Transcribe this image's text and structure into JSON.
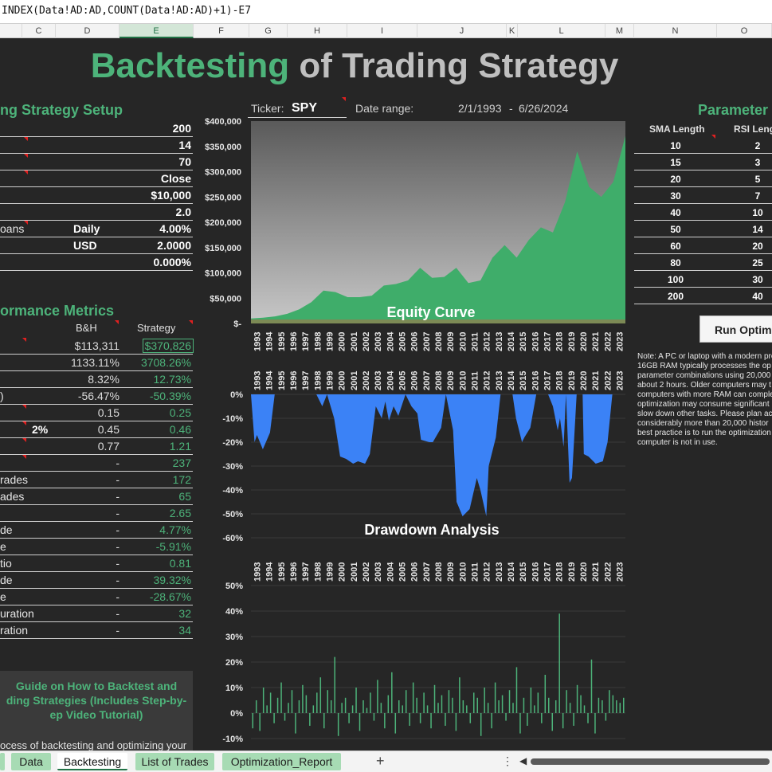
{
  "formula_bar": {
    "text": "INDEX(Data!AD:AD,COUNT(Data!AD:AD)+1)-E7"
  },
  "columns": [
    "C",
    "D",
    "E",
    "F",
    "G",
    "H",
    "I",
    "J",
    "K",
    "L",
    "M",
    "N",
    "O"
  ],
  "title": {
    "part1": "Backtesting",
    "part2": " of Trading Strategy"
  },
  "setup": {
    "heading": "ng Strategy Setup",
    "rows": [
      {
        "label": "",
        "mid": "",
        "value": "200"
      },
      {
        "label": "",
        "mid": "",
        "value": "14"
      },
      {
        "label": "",
        "mid": "",
        "value": "70"
      },
      {
        "label": "",
        "mid": "",
        "value": "Close"
      },
      {
        "label": "",
        "mid": "",
        "value": "$10,000"
      },
      {
        "label": "",
        "mid": "",
        "value": "2.0"
      },
      {
        "label": "oans",
        "mid": "Daily",
        "value": "4.00%"
      },
      {
        "label": "",
        "mid": "USD",
        "value": "2.0000"
      },
      {
        "label": "",
        "mid": "",
        "value": "0.000%"
      }
    ]
  },
  "metrics": {
    "heading": "ormance Metrics",
    "col_bh": "B&H",
    "col_strategy": "Strategy",
    "rows": [
      {
        "label": "",
        "mid": "",
        "bh": "$113,311",
        "strategy": "$370,826"
      },
      {
        "label": "",
        "mid": "",
        "bh": "1133.11%",
        "strategy": "3708.26%"
      },
      {
        "label": "",
        "mid": "",
        "bh": "8.32%",
        "strategy": "12.73%"
      },
      {
        "label": ")",
        "mid": "",
        "bh": "-56.47%",
        "strategy": "-50.39%"
      },
      {
        "label": "",
        "mid": "",
        "bh": "0.15",
        "strategy": "0.25"
      },
      {
        "label": "",
        "mid": "2%",
        "bh": "0.45",
        "strategy": "0.46"
      },
      {
        "label": "",
        "mid": "",
        "bh": "0.77",
        "strategy": "1.21"
      },
      {
        "label": "",
        "mid": "",
        "bh": "-",
        "strategy": "237"
      },
      {
        "label": "rades",
        "mid": "",
        "bh": "-",
        "strategy": "172"
      },
      {
        "label": "ades",
        "mid": "",
        "bh": "-",
        "strategy": "65"
      },
      {
        "label": "",
        "mid": "",
        "bh": "-",
        "strategy": "2.65"
      },
      {
        "label": "de",
        "mid": "",
        "bh": "-",
        "strategy": "4.77%"
      },
      {
        "label": "e",
        "mid": "",
        "bh": "-",
        "strategy": "-5.91%"
      },
      {
        "label": "tio",
        "mid": "",
        "bh": "-",
        "strategy": "0.81"
      },
      {
        "label": "de",
        "mid": "",
        "bh": "-",
        "strategy": "39.32%"
      },
      {
        "label": "e",
        "mid": "",
        "bh": "-",
        "strategy": "-28.67%"
      },
      {
        "label": "uration",
        "mid": "",
        "bh": "-",
        "strategy": "32"
      },
      {
        "label": "ration",
        "mid": "",
        "bh": "-",
        "strategy": "34"
      }
    ]
  },
  "guide": {
    "line1": "Guide on How to Backtest and",
    "line2": "ding Strategies (Includes Step-by-",
    "line3": "ep Video Tutorial)",
    "desc": "ocess of backtesting and optimizing your"
  },
  "ticker": {
    "label": "Ticker:",
    "value": "SPY",
    "range_label": "Date range:",
    "range_start": "2/1/1993",
    "range_sep": "-",
    "range_end": "6/26/2024"
  },
  "params": {
    "heading": "Parameter",
    "col1": "SMA Length",
    "col2": "RSI Leng",
    "rows": [
      [
        "10",
        "2"
      ],
      [
        "15",
        "3"
      ],
      [
        "20",
        "5"
      ],
      [
        "30",
        "7"
      ],
      [
        "40",
        "10"
      ],
      [
        "50",
        "14"
      ],
      [
        "60",
        "20"
      ],
      [
        "80",
        "25"
      ],
      [
        "100",
        "30"
      ],
      [
        "200",
        "40"
      ]
    ]
  },
  "run_button": "Run Optimi",
  "note": "Note: A PC or laptop with a modern pro 16GB RAM typically processes the op parameter combinations using 20,000 about 2 hours. Older computers may t computers with more RAM can comple optimization may consume significant slow down other tasks. Please plan ac considerably more than 20,000 histor best practice is to run the optimization computer is not in use.",
  "tabs": [
    {
      "label": ""
    },
    {
      "label": "Data"
    },
    {
      "label": "Backtesting"
    },
    {
      "label": "List of Trades"
    },
    {
      "label": "Optimization_Report"
    }
  ],
  "colors": {
    "accent": "#4db37a",
    "drawdown": "#3b82f6",
    "background": "#262626"
  },
  "chart_data": [
    {
      "type": "area",
      "title": "Equity Curve",
      "x": [
        1993,
        1994,
        1995,
        1996,
        1997,
        1998,
        1999,
        2000,
        2001,
        2002,
        2003,
        2004,
        2005,
        2006,
        2007,
        2008,
        2009,
        2010,
        2011,
        2012,
        2013,
        2014,
        2015,
        2016,
        2017,
        2018,
        2019,
        2020,
        2021,
        2022,
        2023,
        2024
      ],
      "values": [
        10000,
        11500,
        14000,
        19000,
        28000,
        42000,
        65000,
        62000,
        52000,
        52000,
        55000,
        75000,
        78000,
        85000,
        110000,
        90000,
        92000,
        110000,
        80000,
        85000,
        130000,
        155000,
        130000,
        165000,
        190000,
        180000,
        240000,
        340000,
        270000,
        250000,
        280000,
        370826
      ],
      "ylim": [
        0,
        400000
      ],
      "yticks": [
        "$-",
        "$50,000",
        "$100,000",
        "$150,000",
        "$200,000",
        "$250,000",
        "$300,000",
        "$350,000",
        "$400,000"
      ],
      "years": [
        "1993",
        "1994",
        "1995",
        "1996",
        "1997",
        "1998",
        "1999",
        "2000",
        "2001",
        "2002",
        "2003",
        "2004",
        "2005",
        "2006",
        "2007",
        "2008",
        "2009",
        "2010",
        "2011",
        "2012",
        "2013",
        "2014",
        "2015",
        "2016",
        "2017",
        "2018",
        "2019",
        "2020",
        "2021",
        "2022",
        "2023"
      ]
    },
    {
      "type": "area",
      "title": "Drawdown Analysis",
      "x": [
        1993,
        1993.3,
        1993.5,
        1994,
        1994.6,
        1995,
        1998.5,
        1999,
        1999.4,
        2000,
        2000.5,
        2001,
        2001.6,
        2002,
        2002.6,
        2003,
        2003.5,
        2004,
        2004.3,
        2004.6,
        2005,
        2005.4,
        2006,
        2006.5,
        2007,
        2007.3,
        2008,
        2008.3,
        2009,
        2009.4,
        2010,
        2010.3,
        2010.8,
        2011,
        2011.4,
        2012,
        2012.3,
        2012.8,
        2013,
        2013.6,
        2014,
        2015,
        2015.3,
        2015.8,
        2016,
        2016.5,
        2017,
        2018,
        2018.4,
        2018.8,
        2019,
        2019.3,
        2019.5,
        2019.8,
        2020,
        2020.4,
        2020.9,
        2021,
        2021.4,
        2022,
        2022.6,
        2023,
        2023.4
      ],
      "values": [
        0,
        -20,
        -17,
        -23,
        -16,
        0,
        0,
        -5,
        0,
        -10,
        -26,
        -27,
        -29,
        -28,
        -29,
        -25,
        -5,
        -10,
        -3,
        -11,
        -5,
        -9,
        0,
        -5,
        -8,
        -19,
        -20,
        -20,
        -14,
        0,
        -15,
        -45,
        -51,
        -50,
        -48,
        -35,
        -40,
        -51,
        -30,
        -18,
        0,
        0,
        -10,
        -20,
        -18,
        -14,
        0,
        0,
        -5,
        -15,
        -10,
        -22,
        0,
        -37,
        -35,
        0,
        0,
        -25,
        -26,
        -29,
        -28,
        -20,
        0
      ],
      "ylim": [
        -60,
        0
      ],
      "yticks": [
        "0%",
        "-10%",
        "-20%",
        "-30%",
        "-40%",
        "-50%",
        "-60%"
      ]
    },
    {
      "type": "bar",
      "ylim": [
        -10,
        50
      ],
      "yticks": [
        "-10%",
        "0%",
        "10%",
        "20%",
        "30%",
        "40%",
        "50%"
      ],
      "values": [
        -6,
        5,
        -7,
        10,
        3,
        8,
        -4,
        6,
        12,
        -3,
        4,
        9,
        -8,
        5,
        11,
        7,
        -5,
        3,
        8,
        14,
        -6,
        9,
        5,
        22,
        -9,
        4,
        6,
        -4,
        3,
        10,
        -7,
        5,
        2,
        8,
        -3,
        13,
        4,
        -6,
        7,
        16,
        -8,
        5,
        3,
        9,
        -5,
        12,
        6,
        -4,
        8,
        3,
        -6,
        11,
        4,
        7,
        -5,
        9,
        6,
        -7,
        14,
        5,
        3,
        -4,
        8,
        6,
        -9,
        10,
        4,
        -6,
        12,
        5,
        7,
        -3,
        9,
        4,
        18,
        -8,
        6,
        -5,
        10,
        3,
        8,
        -4,
        15,
        6,
        -7,
        5,
        39,
        -6,
        9,
        4,
        -5,
        11,
        7,
        3,
        -4,
        21,
        -8,
        6,
        5,
        -3,
        9,
        7,
        5,
        4,
        6
      ]
    }
  ]
}
